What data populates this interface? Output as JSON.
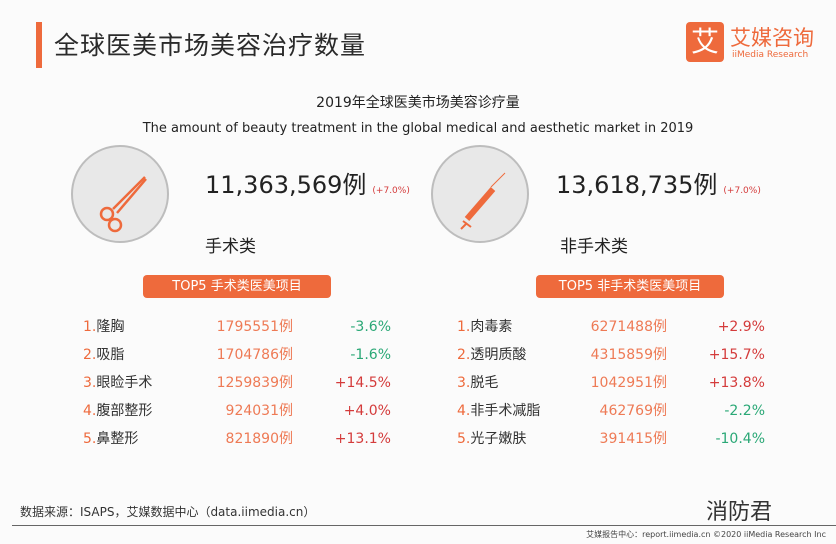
{
  "header": {
    "title": "全球医美市场美容治疗数量",
    "logo_mark": "艾",
    "logo_cn": "艾媒咨询",
    "logo_en": "iiMedia Research"
  },
  "subtitle_cn": "2019年全球医美市场美容诊疗量",
  "subtitle_en": "The amount of beauty treatment in the global medical and aesthetic market in 2019",
  "colors": {
    "accent": "#ee6a3c",
    "positive": "#d43b3b",
    "negative": "#2aa876"
  },
  "surgical": {
    "icon": "scissors-icon",
    "total": "11,363,569例",
    "change": "(+7.0%)",
    "label": "手术类",
    "badge": "TOP5 手术类医美项目",
    "items": [
      {
        "rank": "1.",
        "name": "隆胸",
        "count": "1795551例",
        "pct": "-3.6%",
        "dir": "down"
      },
      {
        "rank": "2.",
        "name": "吸脂",
        "count": "1704786例",
        "pct": "-1.6%",
        "dir": "down"
      },
      {
        "rank": "3.",
        "name": "眼睑手术",
        "count": "1259839例",
        "pct": "+14.5%",
        "dir": "up"
      },
      {
        "rank": "4.",
        "name": "腹部整形",
        "count": "924031例",
        "pct": "+4.0%",
        "dir": "up"
      },
      {
        "rank": "5.",
        "name": "鼻整形",
        "count": "821890例",
        "pct": "+13.1%",
        "dir": "up"
      }
    ]
  },
  "nonsurgical": {
    "icon": "syringe-icon",
    "total": "13,618,735例",
    "change": "(+7.0%)",
    "label": "非手术类",
    "badge": "TOP5 非手术类医美项目",
    "items": [
      {
        "rank": "1.",
        "name": "肉毒素",
        "count": "6271488例",
        "pct": "+2.9%",
        "dir": "up"
      },
      {
        "rank": "2.",
        "name": "透明质酸",
        "count": "4315859例",
        "pct": "+15.7%",
        "dir": "up"
      },
      {
        "rank": "3.",
        "name": "脱毛",
        "count": "1042951例",
        "pct": "+13.8%",
        "dir": "up"
      },
      {
        "rank": "4.",
        "name": "非手术减脂",
        "count": "462769例",
        "pct": "-2.2%",
        "dir": "down"
      },
      {
        "rank": "5.",
        "name": "光子嫩肤",
        "count": "391415例",
        "pct": "-10.4%",
        "dir": "down"
      }
    ]
  },
  "footer": {
    "source": "数据来源：ISAPS，艾媒数据中心（data.iimedia.cn）",
    "credit": "艾媒报告中心：report.iimedia.cn ©2020 iiMedia Research Inc",
    "watermark": "消防君"
  }
}
